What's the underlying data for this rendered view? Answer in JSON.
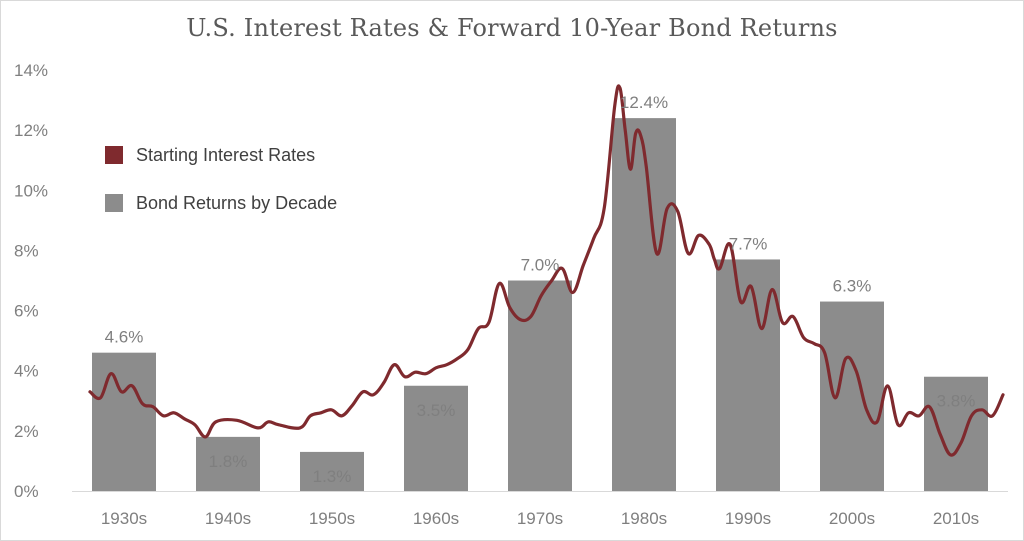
{
  "chart_data": {
    "type": "bar",
    "title": "U.S. Interest Rates & Forward 10-Year Bond Returns",
    "xlabel": "",
    "ylabel": "",
    "ylim": [
      0,
      14
    ],
    "yticks": [
      "0%",
      "2%",
      "4%",
      "6%",
      "8%",
      "10%",
      "12%",
      "14%"
    ],
    "grid": false,
    "legend_position": "upper-left",
    "categories": [
      "1930s",
      "1940s",
      "1950s",
      "1960s",
      "1970s",
      "1980s",
      "1990s",
      "2000s",
      "2010s"
    ],
    "series": [
      {
        "name": "Bond Returns by Decade",
        "type": "bar",
        "color": "#8c8c8c",
        "values": [
          4.6,
          1.8,
          1.3,
          3.5,
          7.0,
          12.4,
          7.7,
          6.3,
          3.8
        ],
        "labels": [
          "4.6%",
          "1.8%",
          "1.3%",
          "3.5%",
          "7.0%",
          "12.4%",
          "7.7%",
          "6.3%",
          "3.8%"
        ]
      },
      {
        "name": "Starting Interest Rates",
        "type": "line",
        "color": "#7f2a2e",
        "x": [
          1930.0,
          1931.0,
          1932.0,
          1933.0,
          1934.0,
          1935.0,
          1936.0,
          1937.0,
          1938.0,
          1939.0,
          1940.0,
          1941.0,
          1942.0,
          1944.0,
          1946.0,
          1947.0,
          1948.0,
          1950.0,
          1951.0,
          1952.0,
          1953.0,
          1954.0,
          1955.0,
          1956.0,
          1957.0,
          1958.0,
          1959.0,
          1960.0,
          1961.0,
          1962.0,
          1963.0,
          1964.0,
          1965.0,
          1966.0,
          1967.0,
          1968.0,
          1969.0,
          1970.0,
          1971.0,
          1972.0,
          1973.0,
          1974.0,
          1975.0,
          1976.0,
          1977.0,
          1978.0,
          1979.0,
          1980.0,
          1980.5,
          1981.0,
          1981.5,
          1982.0,
          1982.5,
          1983.0,
          1984.0,
          1985.0,
          1986.0,
          1987.0,
          1988.0,
          1989.0,
          1989.5,
          1990.0,
          1991.0,
          1992.0,
          1993.0,
          1994.0,
          1995.0,
          1996.0,
          1997.0,
          1998.0,
          1999.0,
          2000.0,
          2001.0,
          2002.0,
          2003.0,
          2004.0,
          2005.0,
          2006.0,
          2007.0,
          2008.0,
          2009.0,
          2010.0,
          2011.0,
          2012.0,
          2013.0,
          2014.0,
          2015.0,
          2016.0,
          2017.0
        ],
        "y": [
          3.3,
          3.1,
          3.9,
          3.3,
          3.5,
          2.9,
          2.8,
          2.5,
          2.6,
          2.4,
          2.2,
          1.8,
          2.3,
          2.35,
          2.1,
          2.3,
          2.2,
          2.1,
          2.5,
          2.6,
          2.7,
          2.5,
          2.85,
          3.3,
          3.2,
          3.6,
          4.2,
          3.8,
          3.95,
          3.9,
          4.1,
          4.2,
          4.4,
          4.7,
          5.4,
          5.6,
          6.9,
          6.1,
          5.7,
          5.8,
          6.5,
          7.0,
          7.4,
          6.6,
          7.5,
          8.4,
          9.4,
          12.8,
          13.4,
          12.0,
          10.7,
          11.9,
          11.8,
          10.8,
          7.9,
          9.4,
          9.3,
          7.9,
          8.5,
          8.2,
          7.7,
          7.4,
          8.2,
          6.3,
          6.8,
          5.4,
          6.7,
          5.6,
          5.8,
          5.1,
          4.9,
          4.6,
          3.1,
          4.4,
          4.0,
          2.7,
          2.3,
          3.5,
          2.2,
          2.6,
          2.5,
          2.8,
          1.9,
          1.2,
          1.6,
          2.5,
          2.7,
          2.5,
          3.2
        ]
      }
    ]
  }
}
